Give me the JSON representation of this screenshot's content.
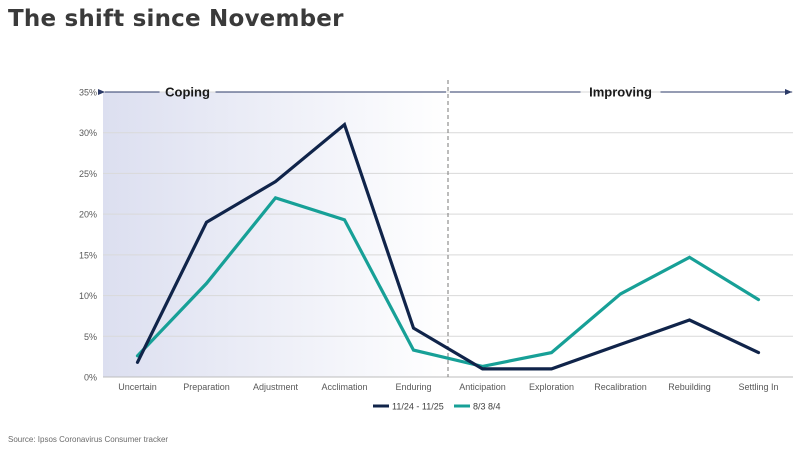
{
  "title": "The shift since November",
  "source": "Source: Ipsos Coronavirus Consumer tracker",
  "chart_data": {
    "type": "line",
    "categories": [
      "Uncertain",
      "Preparation",
      "Adjustment",
      "Acclimation",
      "Enduring",
      "Anticipation",
      "Exploration",
      "Recalibration",
      "Rebuilding",
      "Settling In"
    ],
    "series": [
      {
        "name": "11/24 - 11/25",
        "color": "#10244a",
        "values": [
          1.8,
          19,
          24,
          31,
          6,
          1,
          1,
          4,
          7,
          3
        ]
      },
      {
        "name": "8/3 8/4",
        "color": "#17a097",
        "values": [
          2.6,
          11.5,
          22,
          19.3,
          3.3,
          1.3,
          3,
          10.2,
          14.7,
          9.5
        ]
      }
    ],
    "ylim": [
      0,
      35
    ],
    "yticks": [
      "0%",
      "5%",
      "10%",
      "15%",
      "20%",
      "25%",
      "30%",
      "35%"
    ],
    "grid": true,
    "legend": "bottom",
    "regions": [
      {
        "label": "Coping",
        "from": "Uncertain",
        "to": "Enduring",
        "shaded": true
      },
      {
        "label": "Improving",
        "from": "Anticipation",
        "to": "Settling In",
        "shaded": false
      }
    ]
  }
}
